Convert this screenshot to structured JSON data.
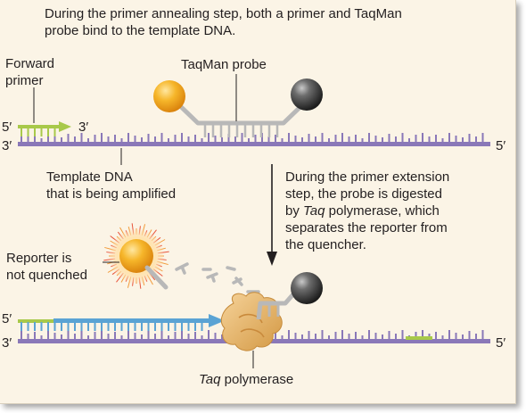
{
  "caption_top": {
    "line1": "During the primer annealing step, both a primer and TaqMan",
    "line2": "probe bind to the template DNA."
  },
  "labels": {
    "forward_primer_line1": "Forward",
    "forward_primer_line2": "primer",
    "taqman_probe": "TaqMan probe",
    "template_dna_line1": "Template DNA",
    "template_dna_line2": "that is being amplified",
    "reporter_line1": "Reporter is",
    "reporter_line2": "not quenched",
    "taq_italic": "Taq",
    "polymerase": " polymerase"
  },
  "ends": {
    "five_prime": "5′",
    "three_prime": "3′"
  },
  "caption_extension": {
    "line1": "During the primer extension",
    "line2": "step, the probe is digested",
    "line3_prefix": "by ",
    "line3_italic": "Taq",
    "line3_suffix": " polymerase, which",
    "line4": "separates the reporter from",
    "line5": "the quencher."
  },
  "colors": {
    "background": "#fbf4e6",
    "template_strand": "#8a78b8",
    "primer": "#a8c94a",
    "new_strand": "#5aa3d4",
    "reporter": "#f3a51c",
    "quencher": "#3a3a3a",
    "probe": "#b8b8b8",
    "polymerase": "#e7b46a"
  }
}
